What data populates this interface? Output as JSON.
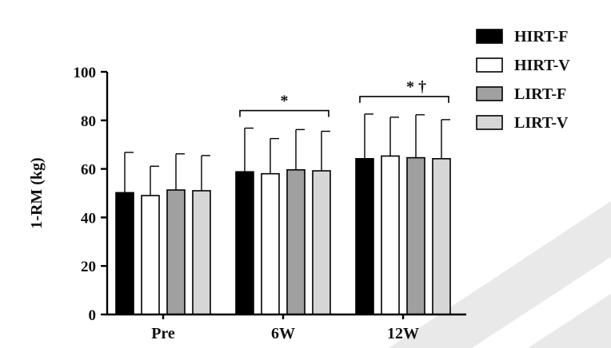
{
  "chart_data": {
    "type": "bar",
    "categories": [
      "Pre",
      "6W",
      "12W"
    ],
    "ylabel": "1-RM (kg)",
    "xlabel": "",
    "ylim": [
      0,
      100
    ],
    "yticks": [
      0,
      20,
      40,
      60,
      80,
      100
    ],
    "grid": false,
    "legend_position": "top-right",
    "series": [
      {
        "name": "HIRT-F",
        "color": "#000000",
        "values": [
          50.2,
          58.8,
          64.2
        ],
        "errors": [
          16.6,
          18.0,
          18.4
        ]
      },
      {
        "name": "HIRT-V",
        "color": "#ffffff",
        "values": [
          49.0,
          58.0,
          65.3
        ],
        "errors": [
          12.1,
          14.5,
          16.0
        ]
      },
      {
        "name": "LIRT-F",
        "color": "#a0a0a0",
        "values": [
          51.3,
          59.6,
          64.6
        ],
        "errors": [
          14.9,
          16.6,
          17.7
        ]
      },
      {
        "name": "LIRT-V",
        "color": "#d6d6d6",
        "values": [
          51.0,
          59.2,
          64.2
        ],
        "errors": [
          14.5,
          16.3,
          16.1
        ]
      }
    ],
    "annotations": [
      {
        "category": "6W",
        "text": "*"
      },
      {
        "category": "12W",
        "text": "* †"
      }
    ]
  }
}
